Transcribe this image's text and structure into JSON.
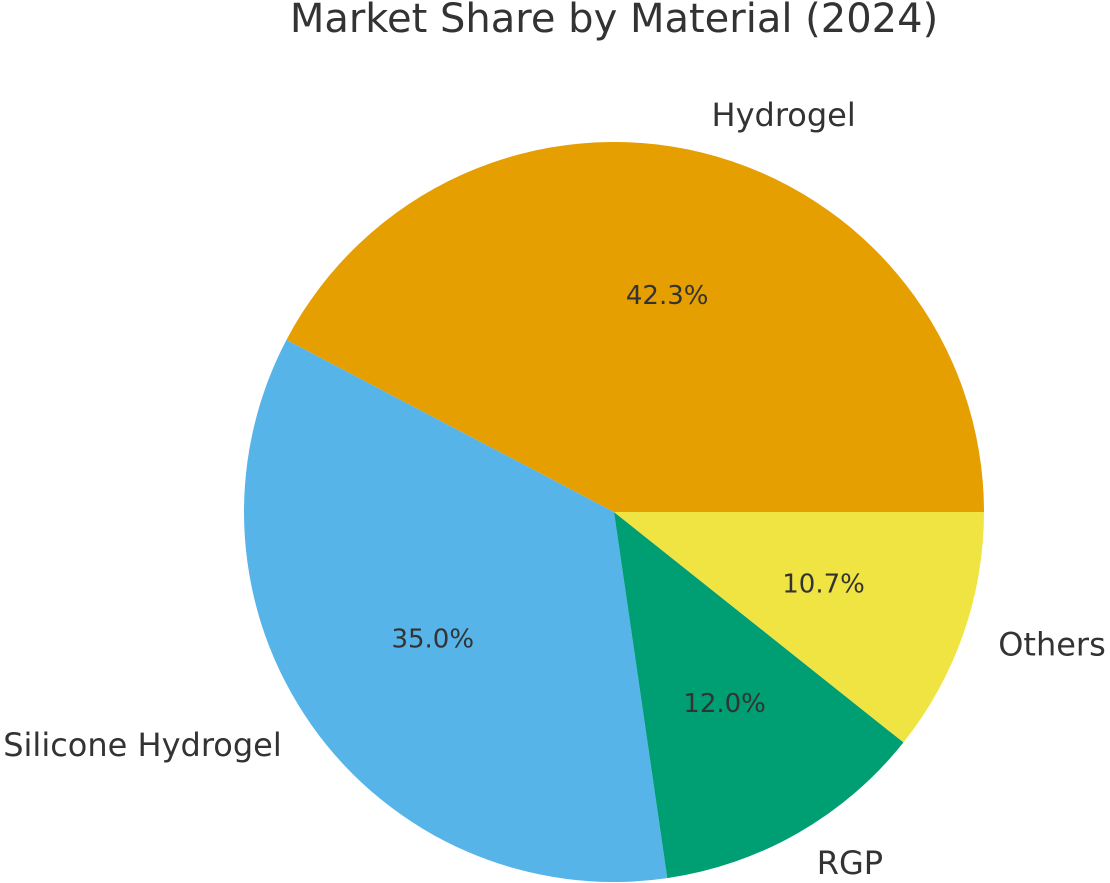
{
  "chart_data": {
    "type": "pie",
    "title": "Market Share by Material (2024)",
    "slices": [
      {
        "label": "Hydrogel",
        "value": 42.3,
        "pct_label": "42.3%",
        "color": "#E69F00"
      },
      {
        "label": "Silicone Hydrogel",
        "value": 35.0,
        "pct_label": "35.0%",
        "color": "#56B4E9"
      },
      {
        "label": "RGP",
        "value": 12.0,
        "pct_label": "12.0%",
        "color": "#009E73"
      },
      {
        "label": "Others",
        "value": 10.7,
        "pct_label": "10.7%",
        "color": "#F0E442"
      }
    ]
  }
}
